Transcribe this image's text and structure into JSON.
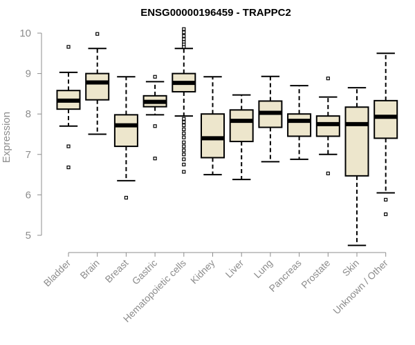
{
  "chart_data": {
    "type": "boxplot",
    "title": "ENSG00000196459 - TRAPPC2",
    "xlabel": "",
    "ylabel": "Expression",
    "ylim": [
      4.75,
      10.1
    ],
    "yticks": [
      5,
      6,
      7,
      8,
      9,
      10
    ],
    "grid": false,
    "legend": "none",
    "box_fill": "#ede6cc",
    "median_color": "#000000",
    "axis_color": "#8c8c8c",
    "categories": [
      "Bladder",
      "Brain",
      "Breast",
      "Gastric",
      "Hematopoietic cells",
      "Kidney",
      "Liver",
      "Lung",
      "Pancreas",
      "Prostate",
      "Skin",
      "Unknown / Other"
    ],
    "boxes": [
      {
        "category": "Bladder",
        "whisker_low": 7.7,
        "q1": 8.12,
        "median": 8.33,
        "q3": 8.58,
        "whisker_high": 9.03,
        "outliers": [
          9.66,
          7.2,
          6.68
        ]
      },
      {
        "category": "Brain",
        "whisker_low": 7.5,
        "q1": 8.35,
        "median": 8.78,
        "q3": 9.0,
        "whisker_high": 9.62,
        "outliers": [
          9.98
        ]
      },
      {
        "category": "Breast",
        "whisker_low": 6.35,
        "q1": 7.2,
        "median": 7.72,
        "q3": 7.98,
        "whisker_high": 8.92,
        "outliers": [
          5.93
        ]
      },
      {
        "category": "Gastric",
        "whisker_low": 7.98,
        "q1": 8.18,
        "median": 8.3,
        "q3": 8.45,
        "whisker_high": 8.8,
        "outliers": [
          8.92,
          7.7,
          6.9
        ]
      },
      {
        "category": "Hematopoietic cells",
        "whisker_low": 7.95,
        "q1": 8.55,
        "median": 8.77,
        "q3": 9.0,
        "whisker_high": 9.62,
        "outliers": [
          10.1,
          10.02,
          9.93,
          9.85,
          9.78,
          9.72,
          9.66,
          7.88,
          7.8,
          7.72,
          7.62,
          7.52,
          7.42,
          7.3,
          7.2,
          7.1,
          7.0,
          6.88,
          6.75,
          6.57
        ]
      },
      {
        "category": "Kidney",
        "whisker_low": 6.5,
        "q1": 6.92,
        "median": 7.4,
        "q3": 8.0,
        "whisker_high": 8.92,
        "outliers": []
      },
      {
        "category": "Liver",
        "whisker_low": 6.38,
        "q1": 7.32,
        "median": 7.83,
        "q3": 8.1,
        "whisker_high": 8.47,
        "outliers": []
      },
      {
        "category": "Lung",
        "whisker_low": 6.82,
        "q1": 7.67,
        "median": 8.03,
        "q3": 8.32,
        "whisker_high": 8.93,
        "outliers": []
      },
      {
        "category": "Pancreas",
        "whisker_low": 6.88,
        "q1": 7.45,
        "median": 7.83,
        "q3": 8.0,
        "whisker_high": 8.7,
        "outliers": []
      },
      {
        "category": "Prostate",
        "whisker_low": 7.0,
        "q1": 7.45,
        "median": 7.75,
        "q3": 7.95,
        "whisker_high": 8.42,
        "outliers": [
          8.88,
          6.53
        ]
      },
      {
        "category": "Skin",
        "whisker_low": 4.75,
        "q1": 6.47,
        "median": 7.75,
        "q3": 8.17,
        "whisker_high": 8.65,
        "outliers": []
      },
      {
        "category": "Unknown / Other",
        "whisker_low": 6.05,
        "q1": 7.4,
        "median": 7.93,
        "q3": 8.33,
        "whisker_high": 9.5,
        "outliers": [
          5.88,
          5.52
        ]
      }
    ]
  }
}
